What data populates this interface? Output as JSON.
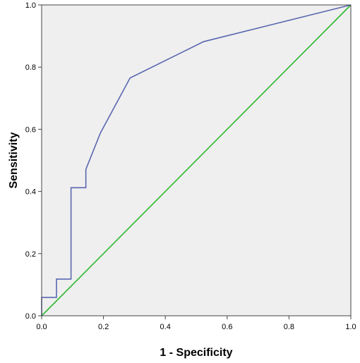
{
  "chart_data": {
    "type": "line",
    "title": "",
    "xlabel": "1 - Specificity",
    "ylabel": "Sensitivity",
    "xlim": [
      0.0,
      1.0
    ],
    "ylim": [
      0.0,
      1.0
    ],
    "x_ticks": [
      "0.0",
      "0.2",
      "0.4",
      "0.6",
      "0.8",
      "1.0"
    ],
    "y_ticks": [
      "0.0",
      "0.2",
      "0.4",
      "0.6",
      "0.8",
      "1.0"
    ],
    "grid": false,
    "legend": "none",
    "plot_background": "#efefef",
    "series": [
      {
        "color": "#5a67b0",
        "step": true,
        "x": [
          0.0,
          0.0,
          0.048,
          0.048,
          0.095,
          0.095,
          0.143,
          0.143,
          0.19,
          0.286,
          0.524,
          1.0
        ],
        "y": [
          0.0,
          0.059,
          0.059,
          0.118,
          0.118,
          0.412,
          0.412,
          0.471,
          0.588,
          0.765,
          0.882,
          1.0
        ]
      },
      {
        "color": "#2eb82e",
        "step": false,
        "x": [
          0.0,
          1.0
        ],
        "y": [
          0.0,
          1.0
        ]
      }
    ]
  }
}
